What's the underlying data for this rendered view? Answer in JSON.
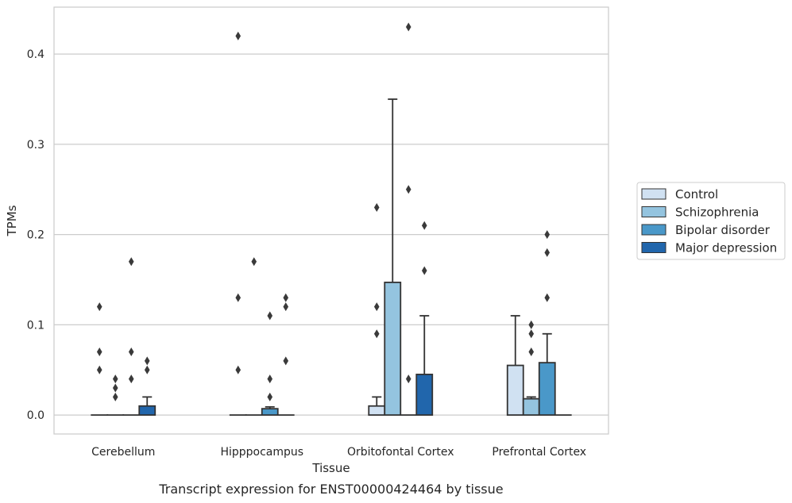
{
  "chart_data": {
    "type": "bar",
    "caption": "Transcript expression for ENST00000424464 by tissue",
    "xlabel": "Tissue",
    "ylabel": "TPMs",
    "ylim": [
      -0.021,
      0.452
    ],
    "yticks": [
      "0.0",
      "0.1",
      "0.2",
      "0.3",
      "0.4"
    ],
    "ytick_values": [
      0.0,
      0.1,
      0.2,
      0.3,
      0.4
    ],
    "grid": "horizontal",
    "legend_position": "right",
    "categories": [
      "Cerebellum",
      "Hipppocampus",
      "Orbitofontal Cortex",
      "Prefrontal Cortex"
    ],
    "series": [
      {
        "name": "Control",
        "color": "#d0e1f2",
        "values": [
          0.0,
          0.0,
          0.01,
          0.055
        ],
        "error_upper": [
          0.0,
          0.0,
          0.02,
          0.11
        ],
        "outliers": [
          [
            0.12,
            0.07,
            0.05
          ],
          [
            0.42,
            0.13,
            0.05
          ],
          [
            0.23,
            0.12,
            0.09
          ],
          []
        ]
      },
      {
        "name": "Schizophrenia",
        "color": "#94c4df",
        "values": [
          0.0,
          0.0,
          0.147,
          0.018
        ],
        "error_upper": [
          0.0,
          0.0,
          0.35,
          0.02
        ],
        "outliers": [
          [
            0.04,
            0.03,
            0.02
          ],
          [
            0.17
          ],
          [],
          [
            0.1,
            0.09,
            0.07
          ]
        ]
      },
      {
        "name": "Bipolar disorder",
        "color": "#4a98c9",
        "values": [
          0.0,
          0.007,
          0.0,
          0.058
        ],
        "error_upper": [
          0.0,
          0.009,
          0.0,
          0.09
        ],
        "outliers": [
          [
            0.17,
            0.07,
            0.04
          ],
          [
            0.11,
            0.04,
            0.02
          ],
          [
            0.43,
            0.25,
            0.04
          ],
          [
            0.2,
            0.18,
            0.13
          ]
        ]
      },
      {
        "name": "Major depression",
        "color": "#2166ac",
        "values": [
          0.01,
          0.0,
          0.045,
          0.0
        ],
        "error_upper": [
          0.02,
          0.0,
          0.11,
          0.0
        ],
        "outliers": [
          [
            0.06,
            0.05
          ],
          [
            0.13,
            0.12,
            0.06
          ],
          [
            0.21,
            0.16
          ],
          []
        ]
      }
    ]
  }
}
